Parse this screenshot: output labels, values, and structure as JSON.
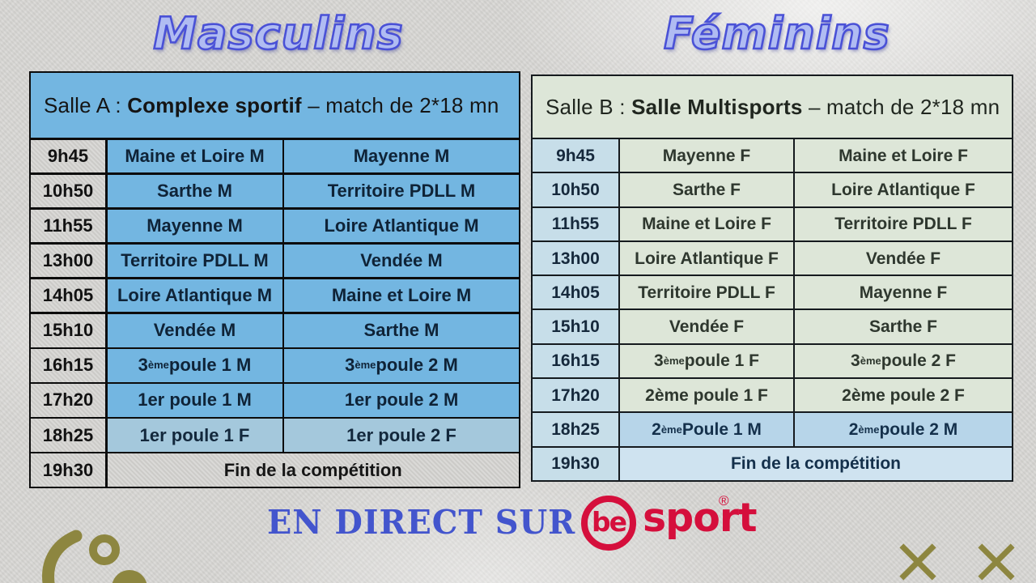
{
  "titles": {
    "left": "Masculins",
    "right": "Féminins"
  },
  "table_a": {
    "header": {
      "room": "Salle A : ",
      "venue": "Complexe sportif",
      "details": " – match de 2*18 mn"
    },
    "rows": [
      {
        "time": "9h45",
        "home": "Maine et Loire M",
        "away": "Mayenne M",
        "variant": "blue"
      },
      {
        "time": "10h50",
        "home": "Sarthe M",
        "away": "Territoire PDLL M",
        "variant": "blue"
      },
      {
        "time": "11h55",
        "home": "Mayenne M",
        "away": "Loire Atlantique M",
        "variant": "blue"
      },
      {
        "time": "13h00",
        "home": "Territoire PDLL M",
        "away": "Vendée M",
        "variant": "blue"
      },
      {
        "time": "14h05",
        "home": "Loire Atlantique M",
        "away": "Maine et Loire M",
        "variant": "blue"
      },
      {
        "time": "15h10",
        "home": "Vendée M",
        "away": "Sarthe M",
        "variant": "blue"
      },
      {
        "time": "16h15",
        "home": "3^ème^ poule 1 M",
        "away": "3^ème^ poule 2 M",
        "variant": "blue"
      },
      {
        "time": "17h20",
        "home": "1er poule 1 M",
        "away": "1er poule 2 M",
        "variant": "blue"
      },
      {
        "time": "18h25",
        "home": "1er poule 1 F",
        "away": "1er poule 2 F",
        "variant": "light"
      },
      {
        "time": "19h30",
        "span": "Fin de la compétition",
        "variant": "footer"
      }
    ]
  },
  "table_b": {
    "header": {
      "room": "Salle B : ",
      "venue": "Salle Multisports",
      "details": " – match de 2*18 mn"
    },
    "rows": [
      {
        "time": "9h45",
        "home": "Mayenne F",
        "away": "Maine et Loire F",
        "variant": "green"
      },
      {
        "time": "10h50",
        "home": "Sarthe F",
        "away": "Loire Atlantique F",
        "variant": "green"
      },
      {
        "time": "11h55",
        "home": "Maine et Loire F",
        "away": "Territoire PDLL F",
        "variant": "green"
      },
      {
        "time": "13h00",
        "home": "Loire Atlantique F",
        "away": "Vendée F",
        "variant": "green"
      },
      {
        "time": "14h05",
        "home": "Territoire PDLL F",
        "away": "Mayenne F",
        "variant": "green"
      },
      {
        "time": "15h10",
        "home": "Vendée F",
        "away": "Sarthe F",
        "variant": "green"
      },
      {
        "time": "16h15",
        "home": "3^ème^ poule 1 F",
        "away": "3^ème^ poule 2 F",
        "variant": "green"
      },
      {
        "time": "17h20",
        "home": "2ème poule 1 F",
        "away": "2ème poule 2 F",
        "variant": "green"
      },
      {
        "time": "18h25",
        "home": "2^ème^ Poule 1 M",
        "away": "2^ème^ poule 2 M",
        "variant": "blue"
      },
      {
        "time": "19h30",
        "span": "Fin de la compétition",
        "variant": "footer"
      }
    ]
  },
  "branding": {
    "live_text": "EN DIRECT SUR",
    "besport": {
      "be": "be",
      "sport": "sport",
      "registered": "®"
    }
  },
  "decorations": {
    "x_marks_count": 2,
    "partial_logo": "gold-swoosh-ring-ball"
  },
  "colors": {
    "background_gray": "#d7d6d3",
    "masculins_blue": "#73b6e1",
    "masculins_light_row": "#a4c8dc",
    "gray_cell": "#d3d2cf",
    "feminins_green": "#dde6d8",
    "feminins_time_blue": "#c7dee9",
    "feminins_blue_row": "#b7d5e9",
    "feminins_footer_blue": "#cfe3f0",
    "title_fill": "#b0bcf2",
    "title_outline": "#4a51d6",
    "live_blue": "#4355cd",
    "besport_red": "#d50f3c",
    "gold": "#8d8640"
  }
}
